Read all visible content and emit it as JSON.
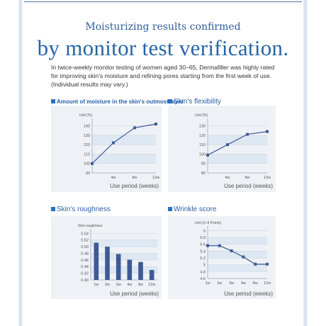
{
  "header": {
    "subtitle": "Moisturizing results confirmed",
    "title": "by monitor test verification.",
    "intro": "In twice-weekly monitor testing of women aged 30–65, Dermafiller was highly rated for improving skin's moisture and refining pores starting from the first week of use. (Individual results may vary.)"
  },
  "colors": {
    "accent": "#4b6ea8",
    "bar": "#3d5a96",
    "band": "#dde8f3",
    "panel": "#eef1f5"
  },
  "chart_data": [
    {
      "type": "line",
      "title": "Amount of moisture in the skin's outmost layer",
      "unit_label": "Unit (%)",
      "xlabel": "Use period (weeks)",
      "categories": [
        "",
        "4w",
        "8w",
        "12w"
      ],
      "values": [
        100,
        122,
        138,
        142
      ],
      "yticks": [
        90,
        100,
        110,
        120,
        130,
        140
      ],
      "ylim": [
        90,
        145
      ]
    },
    {
      "type": "line",
      "title": "Skin's flexibility",
      "unit_label": "Unit (%)",
      "xlabel": "Use period (weeks)",
      "categories": [
        "",
        "4w",
        "8w",
        "12w"
      ],
      "values": [
        99,
        110,
        121,
        124
      ],
      "yticks": [
        80,
        90,
        100,
        110,
        120,
        130
      ],
      "ylim": [
        80,
        135
      ]
    },
    {
      "type": "bar",
      "title": "Skin's roughness",
      "unit_label": "Skin roughness",
      "xlabel": "Use period (weeks)",
      "categories": [
        "1w",
        "2w",
        "3w",
        "4w",
        "8w",
        "12w"
      ],
      "values": [
        0.512,
        0.5,
        0.478,
        0.461,
        0.454,
        0.43
      ],
      "yticks": [
        0.4,
        0.42,
        0.44,
        0.46,
        0.48,
        0.5,
        0.52,
        0.54
      ],
      "ylim": [
        0.4,
        0.545
      ]
    },
    {
      "type": "line",
      "title": "Wrinkle score",
      "unit_label": "Unit (0–9 Points)",
      "xlabel": "Use period (weeks)",
      "categories": [
        "1w",
        "2w",
        "3w",
        "4w",
        "8w",
        "12w"
      ],
      "values": [
        5.56,
        5.56,
        5.41,
        5.23,
        5.02,
        5.02
      ],
      "yticks": [
        4.6,
        4.8,
        5.0,
        5.2,
        5.4,
        5.6,
        5.8,
        6.0
      ],
      "ylim": [
        4.6,
        6.05
      ]
    }
  ]
}
